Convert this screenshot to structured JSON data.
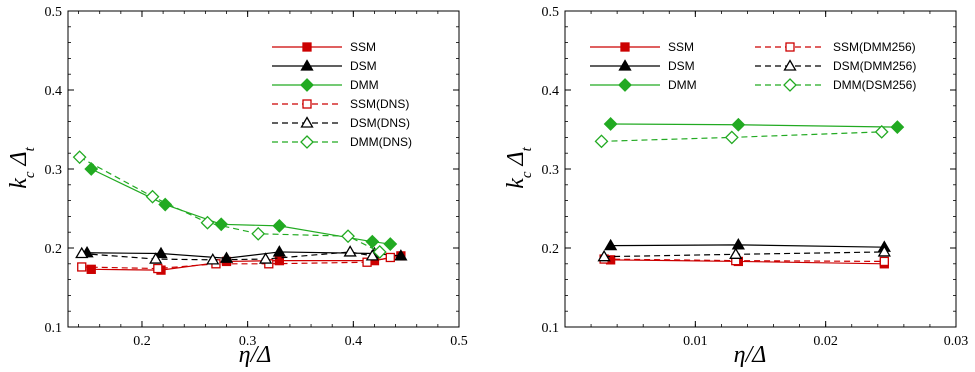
{
  "chart_data": [
    {
      "type": "line",
      "xlabel": "η/Δ",
      "ylabel": "k_c Δ_t",
      "xlim": [
        0.13,
        0.5
      ],
      "ylim": [
        0.1,
        0.5
      ],
      "xticks": [
        0.2,
        0.3,
        0.4,
        0.5
      ],
      "xtick_labels": [
        "0.2",
        "0.3",
        "0.4",
        "0.5"
      ],
      "yticks": [
        0.1,
        0.2,
        0.3,
        0.4,
        0.5
      ],
      "ytick_labels": [
        "0.1",
        "0.2",
        "0.3",
        "0.4",
        "0.5"
      ],
      "grid": false,
      "legend": "top-right",
      "series": [
        {
          "name": "SSM",
          "color": "#cc0000",
          "marker": "square",
          "filled": true,
          "dashed": false,
          "x": [
            0.152,
            0.218,
            0.28,
            0.33,
            0.42,
            0.445
          ],
          "y": [
            0.173,
            0.172,
            0.183,
            0.184,
            0.184,
            0.19
          ]
        },
        {
          "name": "DSM",
          "color": "#000000",
          "marker": "triangle",
          "filled": true,
          "dashed": false,
          "x": [
            0.148,
            0.218,
            0.28,
            0.33,
            0.42,
            0.445
          ],
          "y": [
            0.194,
            0.193,
            0.187,
            0.195,
            0.193,
            0.19
          ]
        },
        {
          "name": "DMM",
          "color": "#22aa22",
          "marker": "diamond",
          "filled": true,
          "dashed": false,
          "x": [
            0.152,
            0.222,
            0.275,
            0.33,
            0.418,
            0.435
          ],
          "y": [
            0.3,
            0.255,
            0.23,
            0.228,
            0.208,
            0.205
          ]
        },
        {
          "name": "SSM(DNS)",
          "color": "#cc0000",
          "marker": "square",
          "filled": false,
          "dashed": true,
          "x": [
            0.143,
            0.215,
            0.27,
            0.32,
            0.413,
            0.435
          ],
          "y": [
            0.176,
            0.174,
            0.18,
            0.18,
            0.182,
            0.188
          ]
        },
        {
          "name": "DSM(DNS)",
          "color": "#000000",
          "marker": "triangle",
          "filled": false,
          "dashed": true,
          "x": [
            0.143,
            0.213,
            0.267,
            0.317,
            0.397,
            0.418
          ],
          "y": [
            0.193,
            0.186,
            0.185,
            0.186,
            0.195,
            0.19
          ]
        },
        {
          "name": "DMM(DNS)",
          "color": "#22aa22",
          "marker": "diamond",
          "filled": false,
          "dashed": true,
          "x": [
            0.141,
            0.21,
            0.262,
            0.31,
            0.395,
            0.425
          ],
          "y": [
            0.315,
            0.265,
            0.232,
            0.218,
            0.215,
            0.195
          ]
        }
      ]
    },
    {
      "type": "line",
      "xlabel": "η/Δ",
      "ylabel": "k_c Δ_t",
      "xlim": [
        0.0,
        0.03
      ],
      "ylim": [
        0.1,
        0.5
      ],
      "xticks": [
        0.01,
        0.02,
        0.03
      ],
      "xtick_labels": [
        "0.01",
        "0.02",
        "0.03"
      ],
      "yticks": [
        0.1,
        0.2,
        0.3,
        0.4,
        0.5
      ],
      "ytick_labels": [
        "0.1",
        "0.2",
        "0.3",
        "0.4",
        "0.5"
      ],
      "grid": false,
      "legend": "top",
      "series": [
        {
          "name": "SSM",
          "color": "#cc0000",
          "marker": "square",
          "filled": true,
          "dashed": false,
          "x": [
            0.0035,
            0.0133,
            0.0245
          ],
          "y": [
            0.185,
            0.183,
            0.18
          ]
        },
        {
          "name": "DSM",
          "color": "#000000",
          "marker": "triangle",
          "filled": true,
          "dashed": false,
          "x": [
            0.0035,
            0.0133,
            0.0245
          ],
          "y": [
            0.203,
            0.204,
            0.201
          ]
        },
        {
          "name": "DMM",
          "color": "#22aa22",
          "marker": "diamond",
          "filled": true,
          "dashed": false,
          "x": [
            0.0035,
            0.0133,
            0.0255
          ],
          "y": [
            0.357,
            0.356,
            0.353
          ]
        },
        {
          "name": "SSM(DMM256)",
          "color": "#cc0000",
          "marker": "square",
          "filled": false,
          "dashed": true,
          "x": [
            0.003,
            0.0131,
            0.0245
          ],
          "y": [
            0.186,
            0.184,
            0.183
          ]
        },
        {
          "name": "DSM(DMM256)",
          "color": "#000000",
          "marker": "triangle",
          "filled": false,
          "dashed": true,
          "x": [
            0.003,
            0.0131,
            0.0245
          ],
          "y": [
            0.189,
            0.192,
            0.195
          ]
        },
        {
          "name": "DMM(DSM256)",
          "color": "#22aa22",
          "marker": "diamond",
          "filled": false,
          "dashed": true,
          "x": [
            0.0028,
            0.0128,
            0.0243
          ],
          "y": [
            0.335,
            0.34,
            0.347
          ]
        }
      ]
    }
  ]
}
